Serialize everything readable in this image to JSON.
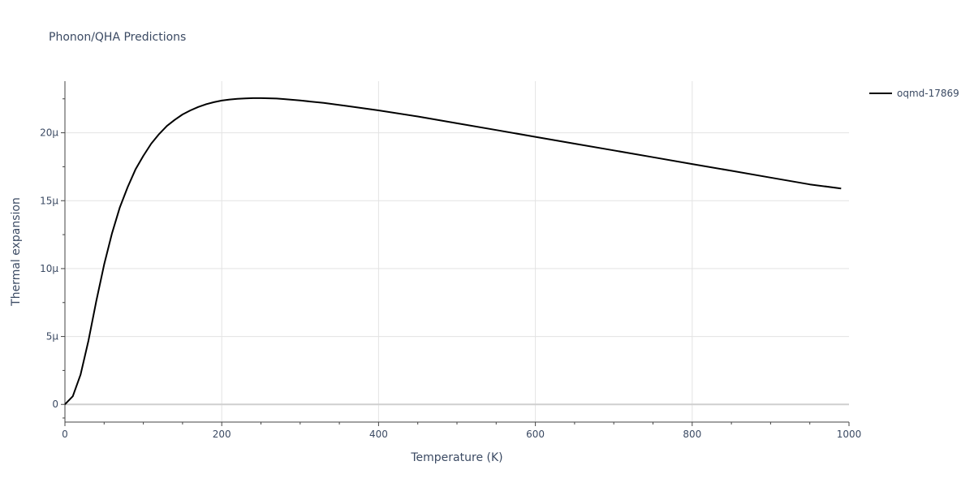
{
  "chart_data": {
    "type": "line",
    "title": "Phonon/QHA Predictions",
    "xlabel": "Temperature (K)",
    "ylabel": "Thermal expansion",
    "xlim": [
      0,
      1000
    ],
    "ylim": [
      -1.3e-06,
      2.38e-05
    ],
    "x_ticks": [
      0,
      200,
      400,
      600,
      800,
      1000
    ],
    "x_tick_labels": [
      "0",
      "200",
      "400",
      "600",
      "800",
      "1000"
    ],
    "x_minor_ticks": [
      50,
      100,
      150,
      250,
      300,
      350,
      450,
      500,
      550,
      650,
      700,
      750,
      850,
      900,
      950
    ],
    "y_ticks": [
      0,
      5e-06,
      1e-05,
      1.5e-05,
      2e-05
    ],
    "y_tick_labels": [
      "0",
      "5μ",
      "10μ",
      "15μ",
      "20μ"
    ],
    "y_minor_ticks": [
      -1e-06,
      2.5e-06,
      7.5e-06,
      1.25e-05,
      1.75e-05,
      2.25e-05
    ],
    "grid": true,
    "legend_position": "top-right",
    "line_color": "#000000",
    "series": [
      {
        "name": "oqmd-17869",
        "x": [
          0,
          10,
          20,
          30,
          40,
          50,
          60,
          70,
          80,
          90,
          100,
          110,
          120,
          130,
          140,
          150,
          160,
          170,
          180,
          190,
          200,
          210,
          220,
          230,
          240,
          250,
          260,
          270,
          280,
          300,
          330,
          360,
          400,
          450,
          500,
          550,
          600,
          650,
          700,
          750,
          800,
          850,
          900,
          950,
          990
        ],
        "y": [
          0,
          6e-07,
          2.2e-06,
          4.7e-06,
          7.6e-06,
          1.03e-05,
          1.26e-05,
          1.45e-05,
          1.6e-05,
          1.73e-05,
          1.83e-05,
          1.92e-05,
          1.99e-05,
          2.05e-05,
          2.095e-05,
          2.135e-05,
          2.165e-05,
          2.19e-05,
          2.21e-05,
          2.225e-05,
          2.237e-05,
          2.245e-05,
          2.25e-05,
          2.253e-05,
          2.255e-05,
          2.255e-05,
          2.254e-05,
          2.252e-05,
          2.248e-05,
          2.238e-05,
          2.22e-05,
          2.197e-05,
          2.165e-05,
          2.12e-05,
          2.07e-05,
          2.02e-05,
          1.97e-05,
          1.92e-05,
          1.87e-05,
          1.82e-05,
          1.77e-05,
          1.72e-05,
          1.67e-05,
          1.62e-05,
          1.59e-05
        ]
      }
    ]
  }
}
